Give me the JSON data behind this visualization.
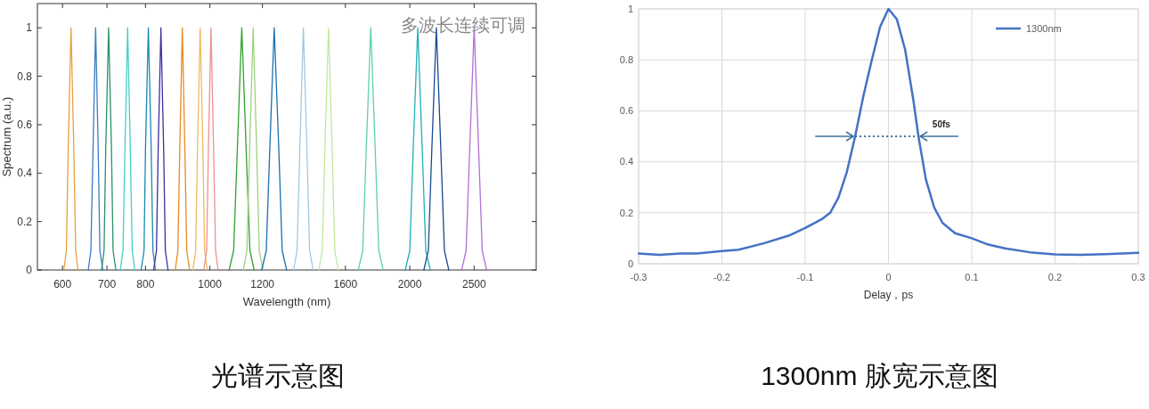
{
  "chart_data": [
    {
      "type": "line",
      "title": "光谱示意图",
      "xlabel": "Wavelength (nm)",
      "ylabel": "Spectrum (a.u.)",
      "log": "x",
      "xlim": [
        550,
        3100
      ],
      "xticks": [
        600,
        700,
        800,
        1000,
        1200,
        1600,
        2000,
        2500
      ],
      "ylim": [
        0,
        1.1
      ],
      "yticks": [
        0,
        0.2,
        0.4,
        0.6,
        0.8,
        1
      ],
      "annotations": [
        "多波长连续可调"
      ],
      "series": [
        {
          "color": "#e8a040",
          "x": [
            603,
            608,
            612,
            618,
            624,
            628,
            633
          ],
          "values": [
            0,
            0.08,
            0.5,
            1,
            0.5,
            0.08,
            0
          ]
        },
        {
          "color": "#3a7ac8",
          "x": [
            656,
            662,
            667,
            673,
            679,
            683,
            690
          ],
          "values": [
            0,
            0.08,
            0.5,
            1,
            0.5,
            0.08,
            0
          ]
        },
        {
          "color": "#2a9068",
          "x": [
            687,
            693,
            697,
            704,
            711,
            715,
            722
          ],
          "values": [
            0,
            0.08,
            0.5,
            1,
            0.5,
            0.08,
            0
          ]
        },
        {
          "color": "#40d0c8",
          "x": [
            733,
            740,
            745,
            752,
            759,
            764,
            771
          ],
          "values": [
            0,
            0.08,
            0.5,
            1,
            0.5,
            0.08,
            0
          ]
        },
        {
          "color": "#1a88b0",
          "x": [
            788,
            796,
            800,
            808,
            816,
            821,
            828
          ],
          "values": [
            0,
            0.08,
            0.5,
            1,
            0.5,
            0.08,
            0
          ]
        },
        {
          "color": "#3a30a0",
          "x": [
            823,
            831,
            836,
            844,
            852,
            857,
            865
          ],
          "values": [
            0,
            0.08,
            0.5,
            1,
            0.5,
            0.08,
            0
          ]
        },
        {
          "color": "#e88a20",
          "x": [
            887,
            895,
            901,
            909,
            917,
            923,
            932
          ],
          "values": [
            0,
            0.08,
            0.5,
            1,
            0.5,
            0.08,
            0
          ]
        },
        {
          "color": "#f0b860",
          "x": [
            943,
            952,
            958,
            967,
            976,
            982,
            991
          ],
          "values": [
            0,
            0.08,
            0.5,
            1,
            0.5,
            0.08,
            0
          ]
        },
        {
          "color": "#f09090",
          "x": [
            979,
            989,
            995,
            1004,
            1013,
            1020,
            1029
          ],
          "values": [
            0,
            0.08,
            0.5,
            1,
            0.5,
            0.08,
            0
          ]
        },
        {
          "color": "#30a030",
          "x": [
            1069,
            1086,
            1100,
            1117,
            1134,
            1149,
            1166
          ],
          "values": [
            0,
            0.08,
            0.5,
            1,
            0.5,
            0.08,
            0
          ]
        },
        {
          "color": "#a0d080",
          "x": [
            1123,
            1137,
            1148,
            1162,
            1176,
            1187,
            1202
          ],
          "values": [
            0,
            0.08,
            0.5,
            1,
            0.5,
            0.08,
            0
          ]
        },
        {
          "color": "#1a70b0",
          "x": [
            1197,
            1216,
            1231,
            1250,
            1270,
            1285,
            1305
          ],
          "values": [
            0,
            0.08,
            0.5,
            1,
            0.5,
            0.08,
            0
          ]
        },
        {
          "color": "#a0c8e0",
          "x": [
            1337,
            1353,
            1366,
            1383,
            1400,
            1413,
            1431
          ],
          "values": [
            0,
            0.08,
            0.5,
            1,
            0.5,
            0.08,
            0
          ]
        },
        {
          "color": "#c0e8a0",
          "x": [
            1459,
            1477,
            1490,
            1509,
            1528,
            1542,
            1561
          ],
          "values": [
            0,
            0.08,
            0.5,
            1,
            0.5,
            0.08,
            0
          ]
        },
        {
          "color": "#60d0b0",
          "x": [
            1673,
            1699,
            1720,
            1747,
            1774,
            1796,
            1824
          ],
          "values": [
            0,
            0.08,
            0.5,
            1,
            0.5,
            0.08,
            0
          ]
        },
        {
          "color": "#20b0b8",
          "x": [
            1969,
            2000,
            2024,
            2056,
            2088,
            2114,
            2147
          ],
          "values": [
            0,
            0.08,
            0.5,
            1,
            0.5,
            0.08,
            0
          ]
        },
        {
          "color": "#1a4a90",
          "x": [
            2100,
            2133,
            2159,
            2193,
            2227,
            2255,
            2290
          ],
          "values": [
            0,
            0.08,
            0.5,
            1,
            0.5,
            0.08,
            0
          ]
        },
        {
          "color": "#b070d8",
          "x": [
            2394,
            2431,
            2462,
            2500,
            2539,
            2571,
            2610
          ],
          "values": [
            0,
            0.08,
            0.5,
            1,
            0.5,
            0.08,
            0
          ]
        }
      ]
    },
    {
      "type": "line",
      "title": "1300nm 脉宽示意图",
      "xlabel": "Delay，ps",
      "xlim": [
        -0.3,
        0.3
      ],
      "xticks": [
        -0.3,
        -0.2,
        -0.1,
        0,
        0.1,
        0.2,
        0.3
      ],
      "ylim": [
        0,
        1
      ],
      "yticks": [
        0,
        0.2,
        0.4,
        0.6,
        0.8,
        1
      ],
      "grid": true,
      "legend": "top right",
      "annotations": [
        {
          "text": "50fs",
          "x": 0.036,
          "y": 0.5
        }
      ],
      "series": [
        {
          "name": "1300nm",
          "color": "#4472c4",
          "x": [
            -0.3,
            -0.275,
            -0.25,
            -0.23,
            -0.2,
            -0.18,
            -0.15,
            -0.12,
            -0.1,
            -0.08,
            -0.07,
            -0.06,
            -0.05,
            -0.04,
            -0.03,
            -0.02,
            -0.01,
            0,
            0.01,
            0.02,
            0.03,
            0.036,
            0.045,
            0.055,
            0.065,
            0.08,
            0.1,
            0.12,
            0.14,
            0.17,
            0.2,
            0.23,
            0.26,
            0.3
          ],
          "values": [
            0.04,
            0.035,
            0.04,
            0.04,
            0.05,
            0.055,
            0.08,
            0.11,
            0.14,
            0.175,
            0.2,
            0.26,
            0.36,
            0.5,
            0.66,
            0.8,
            0.93,
            1,
            0.96,
            0.84,
            0.64,
            0.5,
            0.33,
            0.22,
            0.16,
            0.12,
            0.1,
            0.075,
            0.06,
            0.045,
            0.037,
            0.035,
            0.038,
            0.043
          ]
        }
      ]
    }
  ]
}
